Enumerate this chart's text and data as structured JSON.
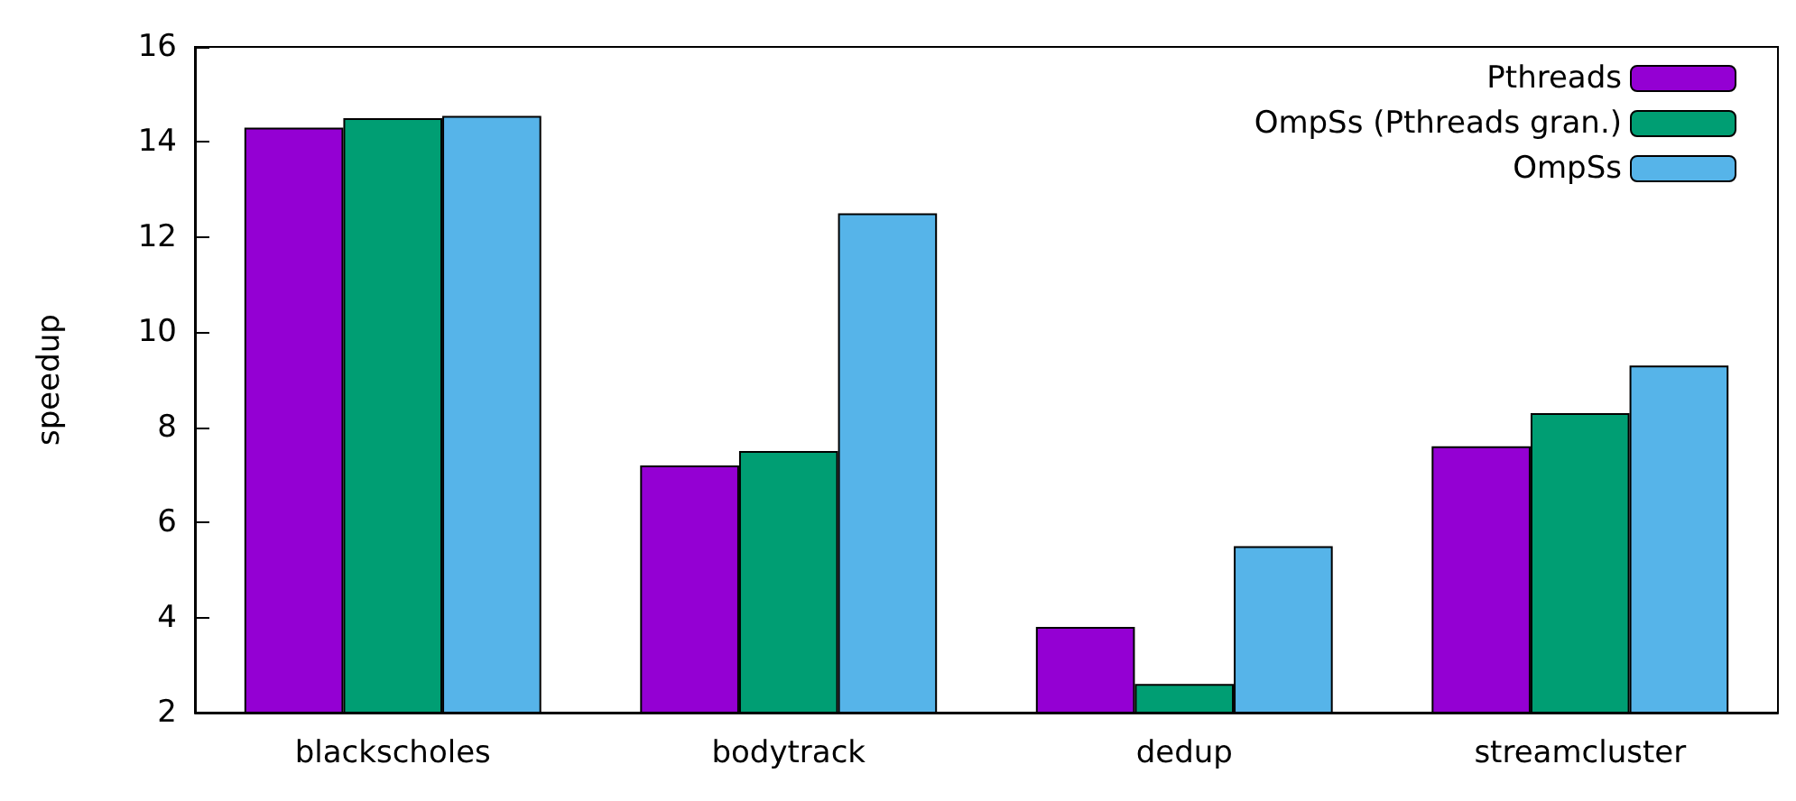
{
  "chart_data": {
    "type": "bar",
    "ylabel": "speedup",
    "categories": [
      "blackscholes",
      "bodytrack",
      "dedup",
      "streamcluster"
    ],
    "series": [
      {
        "name": "Pthreads",
        "color": "#9400d3",
        "values": [
          14.3,
          7.2,
          3.8,
          7.6
        ]
      },
      {
        "name": "OmpSs (Pthreads gran.)",
        "color": "#009e73",
        "values": [
          14.5,
          7.5,
          2.6,
          8.3
        ]
      },
      {
        "name": "OmpSs",
        "color": "#56b4e9",
        "values": [
          14.55,
          12.5,
          5.5,
          9.3
        ]
      }
    ],
    "ylim": [
      2,
      16
    ],
    "yticks": [
      2,
      4,
      6,
      8,
      10,
      12,
      14,
      16
    ],
    "grid": false,
    "legend": "top right"
  }
}
